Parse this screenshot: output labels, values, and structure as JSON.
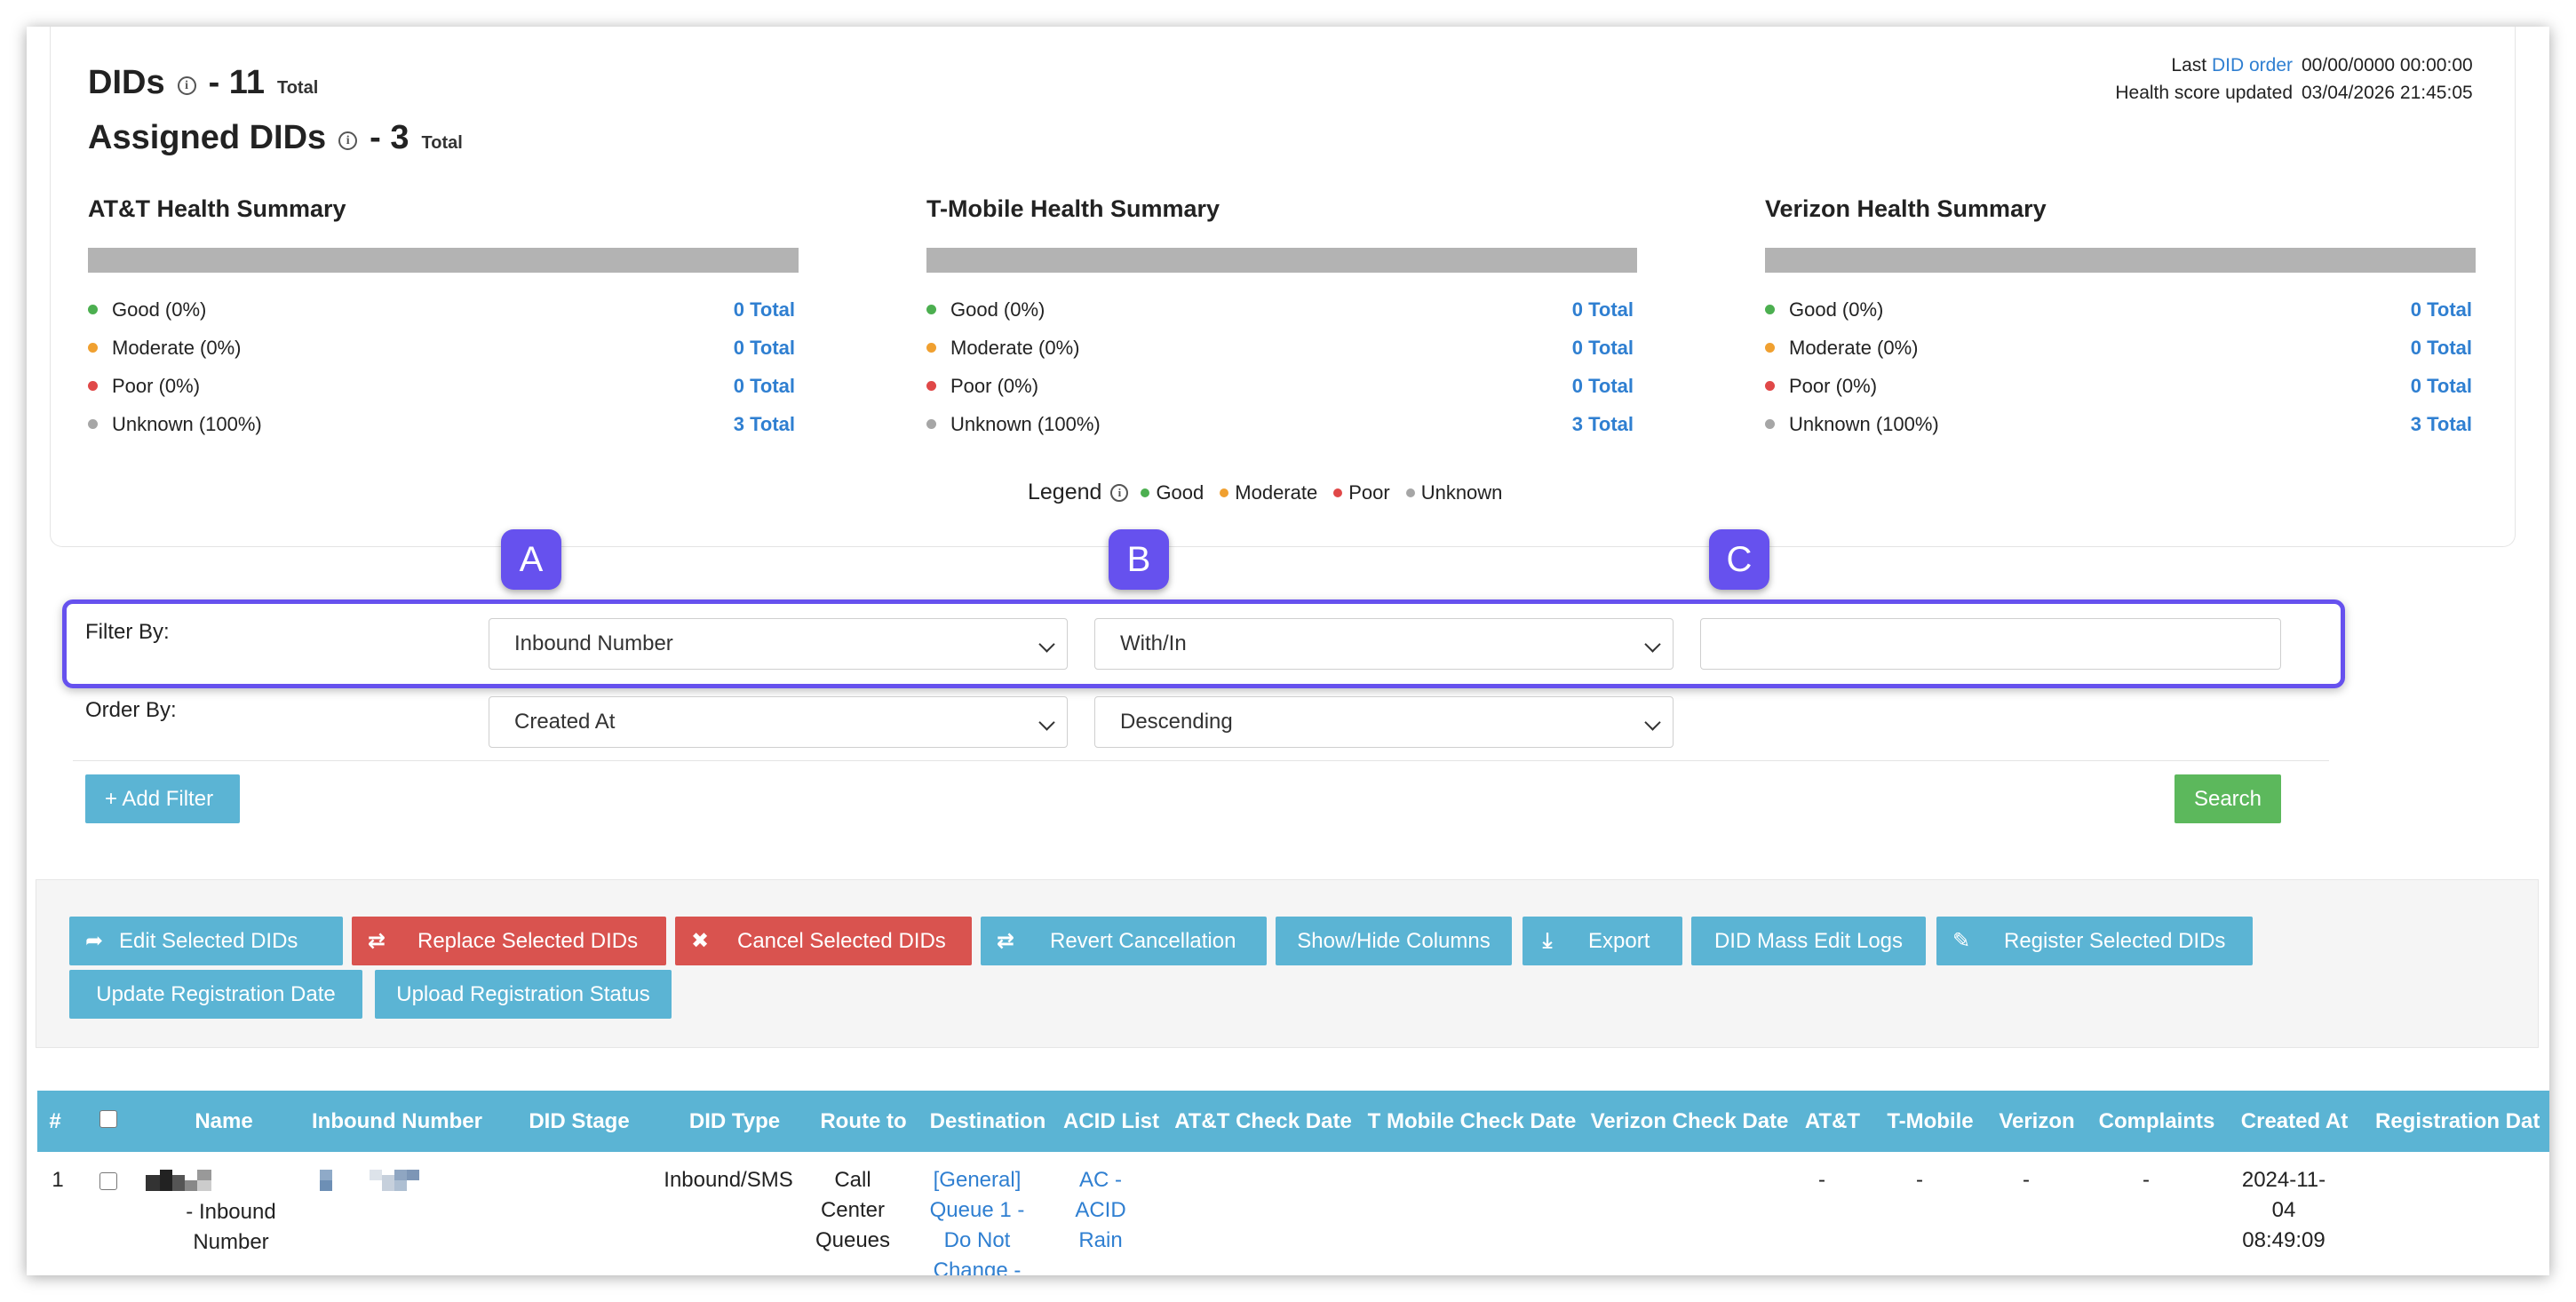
{
  "header": {
    "dids_label": "DIDs",
    "dids_count": "- 11",
    "dids_total": "Total",
    "assigned_label": "Assigned DIDs",
    "assigned_count": "- 3",
    "assigned_total": "Total"
  },
  "meta": {
    "last_prefix": "Last",
    "did_order_link": "DID order",
    "last_value": "00/00/0000 00:00:00",
    "health_label": "Health score updated",
    "health_value": "03/04/2026 21:45:05"
  },
  "summaries": [
    {
      "title": "AT&T Health Summary",
      "rows": [
        {
          "label": "Good (0%)",
          "total": "0 Total"
        },
        {
          "label": "Moderate (0%)",
          "total": "0 Total"
        },
        {
          "label": "Poor (0%)",
          "total": "0 Total"
        },
        {
          "label": "Unknown (100%)",
          "total": "3 Total"
        }
      ]
    },
    {
      "title": "T-Mobile Health Summary",
      "rows": [
        {
          "label": "Good (0%)",
          "total": "0 Total"
        },
        {
          "label": "Moderate (0%)",
          "total": "0 Total"
        },
        {
          "label": "Poor (0%)",
          "total": "0 Total"
        },
        {
          "label": "Unknown (100%)",
          "total": "3 Total"
        }
      ]
    },
    {
      "title": "Verizon Health Summary",
      "rows": [
        {
          "label": "Good (0%)",
          "total": "0 Total"
        },
        {
          "label": "Moderate (0%)",
          "total": "0 Total"
        },
        {
          "label": "Poor (0%)",
          "total": "0 Total"
        },
        {
          "label": "Unknown (100%)",
          "total": "3 Total"
        }
      ]
    }
  ],
  "colors": {
    "good": "#4caf50",
    "moderate": "#f0a030",
    "poor": "#e04848",
    "unknown": "#a6a6a6",
    "accent": "#6651ee",
    "info": "#5bb4d4",
    "danger": "#d9534f",
    "success": "#5cb85c"
  },
  "legend": {
    "title": "Legend",
    "items": [
      "Good",
      "Moderate",
      "Poor",
      "Unknown"
    ]
  },
  "badges": [
    "A",
    "B",
    "C"
  ],
  "filter": {
    "label": "Filter By:",
    "field": "Inbound Number",
    "operator": "With/In",
    "value": ""
  },
  "order": {
    "label": "Order By:",
    "field": "Created At",
    "direction": "Descending"
  },
  "buttons": {
    "add_filter": "+ Add Filter",
    "search": "Search",
    "edit_selected": "Edit Selected DIDs",
    "replace_selected": "Replace Selected DIDs",
    "cancel_selected": "Cancel Selected DIDs",
    "revert_cancellation": "Revert Cancellation",
    "show_hide_columns": "Show/Hide Columns",
    "export": "Export",
    "mass_edit_logs": "DID Mass Edit Logs",
    "register_selected": "Register Selected DIDs",
    "update_registration_date": "Update Registration Date",
    "upload_registration_status": "Upload Registration Status"
  },
  "table": {
    "headers": [
      "#",
      "Name",
      "Inbound Number",
      "DID Stage",
      "DID Type",
      "Route to",
      "Destination",
      "ACID List",
      "AT&T Check Date",
      "T Mobile Check Date",
      "Verizon Check Date",
      "AT&T",
      "T-Mobile",
      "Verizon",
      "Complaints",
      "Created At",
      "Registration Dat"
    ],
    "rows": [
      {
        "num": "1",
        "name_line1": "- Inbound",
        "name_line2": "Number",
        "did_type": "Inbound/SMS",
        "route_l1": "Call",
        "route_l2": "Center",
        "route_l3": "Queues",
        "dest_l1": "[General]",
        "dest_l2": "Queue 1 -",
        "dest_l3": "Do Not",
        "dest_l4": "Change -",
        "acid_l1": "AC -",
        "acid_l2": "ACID",
        "acid_l3": "Rain",
        "att": "-",
        "tmobile": "-",
        "verizon": "-",
        "complaints": "-",
        "created_l1": "2024-11-",
        "created_l2": "04",
        "created_l3": "08:49:09"
      }
    ]
  }
}
